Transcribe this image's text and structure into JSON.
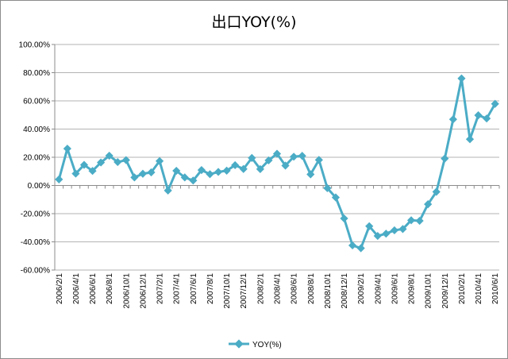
{
  "chart_data": {
    "type": "line",
    "title": "出口YOY(%)",
    "xlabel": "",
    "ylabel": "",
    "ylim": [
      -60,
      100
    ],
    "y_ticks": [
      100,
      80,
      60,
      40,
      20,
      0,
      -20,
      -40,
      -60
    ],
    "y_tick_labels": [
      "100.00%",
      "80.00%",
      "60.00%",
      "40.00%",
      "20.00%",
      "0.00%",
      "-20.00%",
      "-40.00%",
      "-60.00%"
    ],
    "x": [
      "2006/2/1",
      "2006/3/1",
      "2006/4/1",
      "2006/5/1",
      "2006/6/1",
      "2006/7/1",
      "2006/8/1",
      "2006/9/1",
      "2006/10/1",
      "2006/11/1",
      "2006/12/1",
      "2007/1/1",
      "2007/2/1",
      "2007/3/1",
      "2007/4/1",
      "2007/5/1",
      "2007/6/1",
      "2007/7/1",
      "2007/8/1",
      "2007/9/1",
      "2007/10/1",
      "2007/11/1",
      "2007/12/1",
      "2008/1/1",
      "2008/2/1",
      "2008/3/1",
      "2008/4/1",
      "2008/5/1",
      "2008/6/1",
      "2008/7/1",
      "2008/8/1",
      "2008/9/1",
      "2008/10/1",
      "2008/11/1",
      "2008/12/1",
      "2009/1/1",
      "2009/2/1",
      "2009/3/1",
      "2009/4/1",
      "2009/5/1",
      "2009/6/1",
      "2009/7/1",
      "2009/8/1",
      "2009/9/1",
      "2009/10/1",
      "2009/11/1",
      "2009/12/1",
      "2010/1/1",
      "2010/2/1",
      "2010/3/1",
      "2010/4/1",
      "2010/5/1",
      "2010/6/1"
    ],
    "x_tick_labels": [
      "2006/2/1",
      "2006/4/1",
      "2006/6/1",
      "2006/8/1",
      "2006/10/1",
      "2006/12/1",
      "2007/2/1",
      "2007/4/1",
      "2007/6/1",
      "2007/8/1",
      "2007/10/1",
      "2007/12/1",
      "2008/2/1",
      "2008/4/1",
      "2008/6/1",
      "2008/8/1",
      "2008/10/1",
      "2008/12/1",
      "2009/2/1",
      "2009/4/1",
      "2009/6/1",
      "2009/8/1",
      "2009/10/1",
      "2009/12/1",
      "2010/2/1",
      "2010/4/1",
      "2010/6/1"
    ],
    "series": [
      {
        "name": "YOY(%)",
        "color": "#4bacc6",
        "values": [
          4.3,
          26.1,
          8.4,
          14.6,
          10.3,
          16.3,
          21.1,
          16.6,
          18.0,
          5.7,
          8.3,
          9.3,
          17.3,
          -3.6,
          10.4,
          5.7,
          3.5,
          10.9,
          8.0,
          9.6,
          10.5,
          14.4,
          11.7,
          19.5,
          11.6,
          17.8,
          22.5,
          14.1,
          20.4,
          21.0,
          7.9,
          18.1,
          -1.9,
          -8.5,
          -23.4,
          -42.5,
          -44.5,
          -28.9,
          -35.8,
          -34.2,
          -31.8,
          -30.9,
          -24.7,
          -25.1,
          -13.3,
          -4.5,
          19.1,
          46.9,
          75.9,
          32.8,
          49.8,
          47.5,
          57.9
        ]
      }
    ],
    "grid": true,
    "legend": "bottom"
  }
}
